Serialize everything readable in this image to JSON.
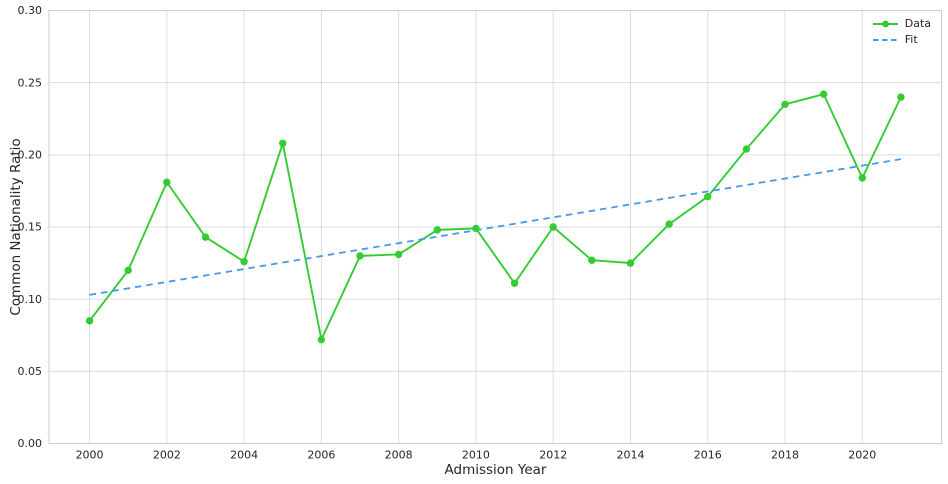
{
  "chart_data": {
    "type": "line",
    "title": "",
    "xlabel": "Admission Year",
    "ylabel": "Common Nationality Ratio",
    "xlim": [
      1998.95,
      2022.05
    ],
    "ylim": [
      0.0,
      0.3
    ],
    "xticks": [
      2000,
      2002,
      2004,
      2006,
      2008,
      2010,
      2012,
      2014,
      2016,
      2018,
      2020
    ],
    "yticks": [
      0.0,
      0.05,
      0.1,
      0.15,
      0.2,
      0.25,
      0.3
    ],
    "grid": true,
    "legend_position": "upper-right",
    "x": [
      2000,
      2001,
      2002,
      2003,
      2004,
      2005,
      2006,
      2007,
      2008,
      2009,
      2010,
      2011,
      2012,
      2013,
      2014,
      2015,
      2016,
      2017,
      2018,
      2019,
      2020,
      2021
    ],
    "series": [
      {
        "name": "Data",
        "style": "solid-with-markers",
        "color": "#33cc33",
        "values": [
          0.085,
          0.12,
          0.181,
          0.143,
          0.126,
          0.208,
          0.072,
          0.13,
          0.131,
          0.148,
          0.149,
          0.111,
          0.15,
          0.127,
          0.125,
          0.152,
          0.171,
          0.204,
          0.235,
          0.242,
          0.184,
          0.24
        ]
      },
      {
        "name": "Fit",
        "style": "dashed",
        "color": "#4499ee",
        "x": [
          2000,
          2021
        ],
        "values": [
          0.103,
          0.197
        ]
      }
    ]
  }
}
